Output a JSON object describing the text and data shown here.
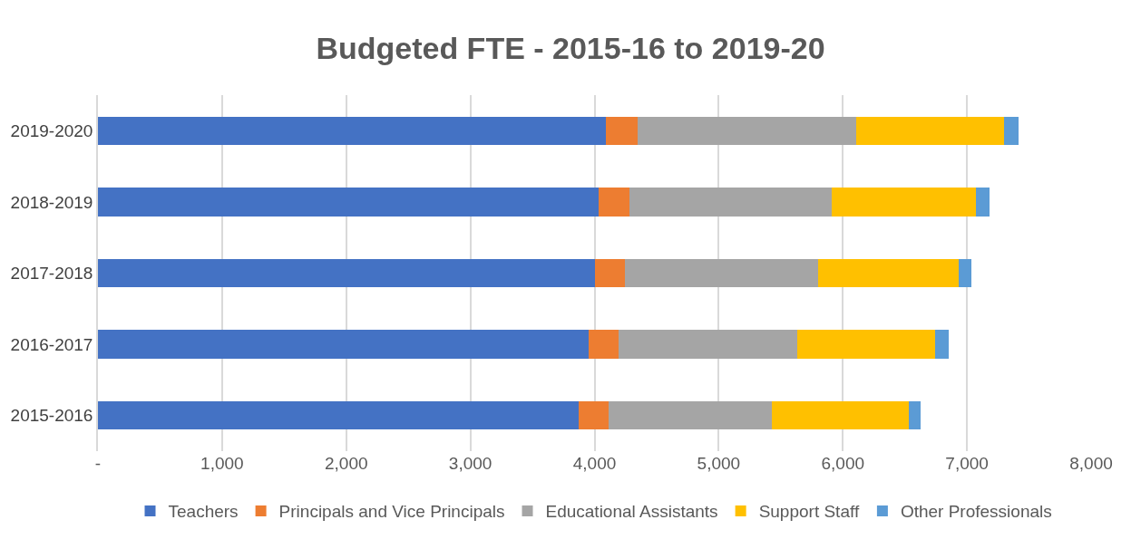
{
  "chart_data": {
    "type": "bar",
    "title": "Budgeted FTE - 2015-16 to 2019-20",
    "orientation": "horizontal",
    "stacked": true,
    "categories": [
      "2019-2020",
      "2018-2019",
      "2017-2018",
      "2016-2017",
      "2015-2016"
    ],
    "series": [
      {
        "name": "Teachers",
        "color": "#4472c4",
        "values": [
          4090,
          4030,
          4000,
          3950,
          3870
        ]
      },
      {
        "name": "Principals and Vice Principals",
        "color": "#ed7d31",
        "values": [
          260,
          250,
          245,
          245,
          245
        ]
      },
      {
        "name": "Educational Assistants",
        "color": "#a5a5a5",
        "values": [
          1760,
          1630,
          1555,
          1440,
          1315
        ]
      },
      {
        "name": "Support Staff",
        "color": "#ffc000",
        "values": [
          1190,
          1160,
          1130,
          1110,
          1100
        ]
      },
      {
        "name": "Other Professionals",
        "color": "#5b9bd5",
        "values": [
          115,
          110,
          105,
          105,
          100
        ]
      }
    ],
    "xlim": [
      0,
      8000
    ],
    "xticks": [
      {
        "value": 0,
        "label": "-"
      },
      {
        "value": 1000,
        "label": "1,000"
      },
      {
        "value": 2000,
        "label": "2,000"
      },
      {
        "value": 3000,
        "label": "3,000"
      },
      {
        "value": 4000,
        "label": "4,000"
      },
      {
        "value": 5000,
        "label": "5,000"
      },
      {
        "value": 6000,
        "label": "6,000"
      },
      {
        "value": 7000,
        "label": "7,000"
      },
      {
        "value": 8000,
        "label": "8,000"
      }
    ],
    "grid": "x",
    "legend": "bottom"
  }
}
